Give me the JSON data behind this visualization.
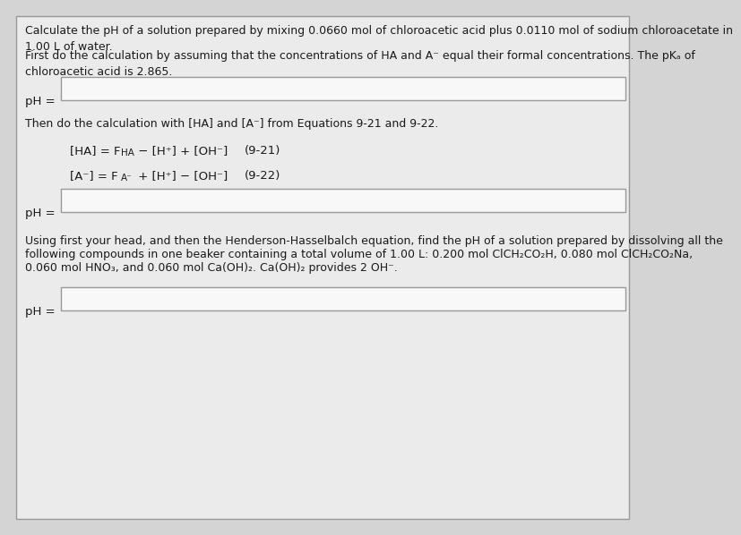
{
  "bg_color": "#d4d4d4",
  "box_bg": "#ebebeb",
  "text_color": "#1a1a1a",
  "border_color": "#999999",
  "input_box_color": "#f8f8f8",
  "title_text": "Calculate the pH of a solution prepared by mixing 0.0660 mol of chloroacetic acid plus 0.0110 mol of sodium chloroacetate in\n1.00 L of water.",
  "para1_text": "First do the calculation by assuming that the concentrations of HA and A⁻ equal their formal concentrations. The pKₐ of\nchloroacetic acid is 2.865.",
  "ph_label": "pH =",
  "para2_text": "Then do the calculation with [HA] and [A⁻] from Equations 9-21 and 9-22.",
  "eq1_part1": "[HA] = F",
  "eq1_sub": "HA",
  "eq1_part2": " − [H⁺] + [OH⁻]",
  "eq1_num": "(9-21)",
  "eq2_part1": "[A⁻] = F",
  "eq2_sub": "A⁻",
  "eq2_part2": " + [H⁺] − [OH⁻]",
  "eq2_num": "(9-22)",
  "para3_line1": "Using first your head, and then the Henderson-Hasselbalch equation, find the pH of a solution prepared by dissolving all the",
  "para3_line2": "following compounds in one beaker containing a total volume of 1.00 L: 0.200 mol ClCH₂CO₂H, 0.080 mol ClCH₂CO₂Na,",
  "para3_line3": "0.060 mol HNO₃, and 0.060 mol Ca(OH)₂. Ca(OH)₂ provides 2 OH⁻.",
  "font_size_main": 9.0,
  "font_size_eq": 9.5,
  "font_size_ph": 9.5
}
